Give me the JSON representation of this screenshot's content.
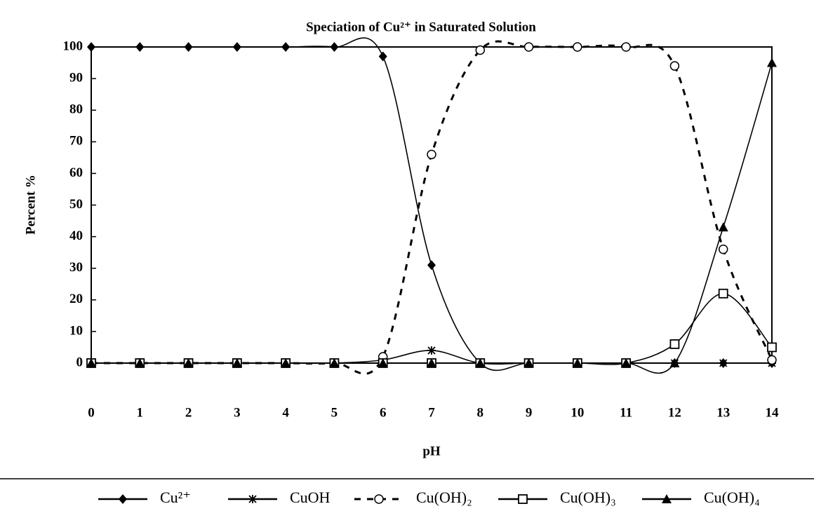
{
  "chart_data": {
    "type": "line",
    "title": "Speciation of Cu²⁺ in Saturated Solution",
    "x_label": "pH",
    "y_label": "Percent %",
    "x": [
      0,
      1,
      2,
      3,
      4,
      5,
      6,
      7,
      8,
      9,
      10,
      11,
      12,
      13,
      14
    ],
    "xlim": [
      0,
      14
    ],
    "xticks": [
      0,
      1,
      2,
      3,
      4,
      5,
      6,
      7,
      8,
      9,
      10,
      11,
      12,
      13,
      14
    ],
    "ylim": [
      0,
      100
    ],
    "yticks": [
      0,
      10,
      20,
      30,
      40,
      50,
      60,
      70,
      80,
      90,
      100
    ],
    "grid": false,
    "smooth": true,
    "legend": "bottom",
    "series": [
      {
        "name": "Cu²⁺",
        "color": "#000000",
        "marker": "diamond",
        "line_style": "solid",
        "values": [
          100,
          100,
          100,
          100,
          100,
          100,
          97,
          31,
          0,
          0,
          0,
          0,
          0,
          0,
          0
        ]
      },
      {
        "name": "CuOH",
        "color": "#000000",
        "marker": "asterisk",
        "line_style": "solid",
        "values": [
          0,
          0,
          0,
          0,
          0,
          0,
          1,
          4,
          0,
          0,
          0,
          0,
          0,
          0,
          0
        ]
      },
      {
        "name": "Cu(OH)₂",
        "color": "#000000",
        "marker": "circle",
        "line_style": "dashed",
        "values": [
          0,
          0,
          0,
          0,
          0,
          0,
          2,
          66,
          99,
          100,
          100,
          100,
          94,
          36,
          1
        ]
      },
      {
        "name": "Cu(OH)₃",
        "color": "#000000",
        "marker": "square",
        "line_style": "solid",
        "values": [
          0,
          0,
          0,
          0,
          0,
          0,
          0,
          0,
          0,
          0,
          0,
          0,
          6,
          22,
          5
        ]
      },
      {
        "name": "Cu(OH)₄",
        "color": "#000000",
        "marker": "triangle",
        "line_style": "solid",
        "values": [
          0,
          0,
          0,
          0,
          0,
          0,
          0,
          0,
          0,
          0,
          0,
          0,
          0,
          43,
          95
        ]
      }
    ]
  }
}
